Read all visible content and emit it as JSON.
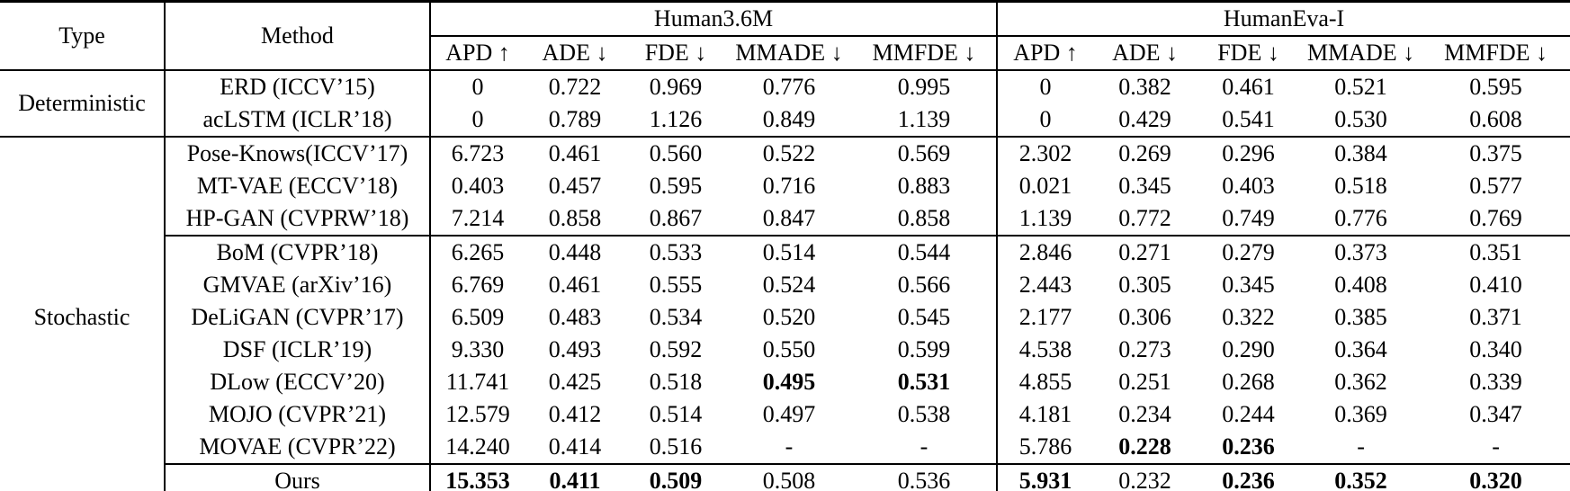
{
  "table": {
    "headers": {
      "type": "Type",
      "method": "Method",
      "dataset_groups": [
        "Human3.6M",
        "HumanEva-I"
      ],
      "metrics": [
        "APD ↑",
        "ADE ↓",
        "FDE ↓",
        "MMADE ↓",
        "MMFDE ↓"
      ]
    },
    "groups": [
      {
        "type": "Deterministic",
        "rows": [
          {
            "method": "ERD (ICCV’15)",
            "h36m": [
              "0",
              "0.722",
              "0.969",
              "0.776",
              "0.995"
            ],
            "heva": [
              "0",
              "0.382",
              "0.461",
              "0.521",
              "0.595"
            ]
          },
          {
            "method": "acLSTM (ICLR’18)",
            "h36m": [
              "0",
              "0.789",
              "1.126",
              "0.849",
              "1.139"
            ],
            "heva": [
              "0",
              "0.429",
              "0.541",
              "0.530",
              "0.608"
            ]
          }
        ]
      },
      {
        "type": "Stochastic",
        "rows": [
          {
            "method": "Pose-Knows(ICCV’17)",
            "h36m": [
              "6.723",
              "0.461",
              "0.560",
              "0.522",
              "0.569"
            ],
            "heva": [
              "2.302",
              "0.269",
              "0.296",
              "0.384",
              "0.375"
            ]
          },
          {
            "method": "MT-VAE (ECCV’18)",
            "h36m": [
              "0.403",
              "0.457",
              "0.595",
              "0.716",
              "0.883"
            ],
            "heva": [
              "0.021",
              "0.345",
              "0.403",
              "0.518",
              "0.577"
            ]
          },
          {
            "method": "HP-GAN (CVPRW’18)",
            "h36m": [
              "7.214",
              "0.858",
              "0.867",
              "0.847",
              "0.858"
            ],
            "heva": [
              "1.139",
              "0.772",
              "0.749",
              "0.776",
              "0.769"
            ],
            "rule_below": true
          },
          {
            "method": "BoM (CVPR’18)",
            "h36m": [
              "6.265",
              "0.448",
              "0.533",
              "0.514",
              "0.544"
            ],
            "heva": [
              "2.846",
              "0.271",
              "0.279",
              "0.373",
              "0.351"
            ]
          },
          {
            "method": "GMVAE (arXiv’16)",
            "h36m": [
              "6.769",
              "0.461",
              "0.555",
              "0.524",
              "0.566"
            ],
            "heva": [
              "2.443",
              "0.305",
              "0.345",
              "0.408",
              "0.410"
            ]
          },
          {
            "method": "DeLiGAN (CVPR’17)",
            "h36m": [
              "6.509",
              "0.483",
              "0.534",
              "0.520",
              "0.545"
            ],
            "heva": [
              "2.177",
              "0.306",
              "0.322",
              "0.385",
              "0.371"
            ]
          },
          {
            "method": "DSF (ICLR’19)",
            "h36m": [
              "9.330",
              "0.493",
              "0.592",
              "0.550",
              "0.599"
            ],
            "heva": [
              "4.538",
              "0.273",
              "0.290",
              "0.364",
              "0.340"
            ]
          },
          {
            "method": "DLow (ECCV’20)",
            "h36m": [
              "11.741",
              "0.425",
              "0.518",
              "0.495",
              "0.531"
            ],
            "heva": [
              "4.855",
              "0.251",
              "0.268",
              "0.362",
              "0.339"
            ],
            "bold_h36m": [
              3,
              4
            ]
          },
          {
            "method": "MOJO (CVPR’21)",
            "h36m": [
              "12.579",
              "0.412",
              "0.514",
              "0.497",
              "0.538"
            ],
            "heva": [
              "4.181",
              "0.234",
              "0.244",
              "0.369",
              "0.347"
            ]
          },
          {
            "method": "MOVAE (CVPR’22)",
            "h36m": [
              "14.240",
              "0.414",
              "0.516",
              "-",
              "-"
            ],
            "heva": [
              "5.786",
              "0.228",
              "0.236",
              "-",
              "-"
            ],
            "bold_heva": [
              1,
              2
            ],
            "rule_below": true
          },
          {
            "method": "Ours",
            "h36m": [
              "15.353",
              "0.411",
              "0.509",
              "0.508",
              "0.536"
            ],
            "heva": [
              "5.931",
              "0.232",
              "0.236",
              "0.352",
              "0.320"
            ],
            "bold_h36m": [
              0,
              1,
              2
            ],
            "bold_heva": [
              0,
              2,
              3,
              4
            ]
          }
        ]
      }
    ]
  }
}
